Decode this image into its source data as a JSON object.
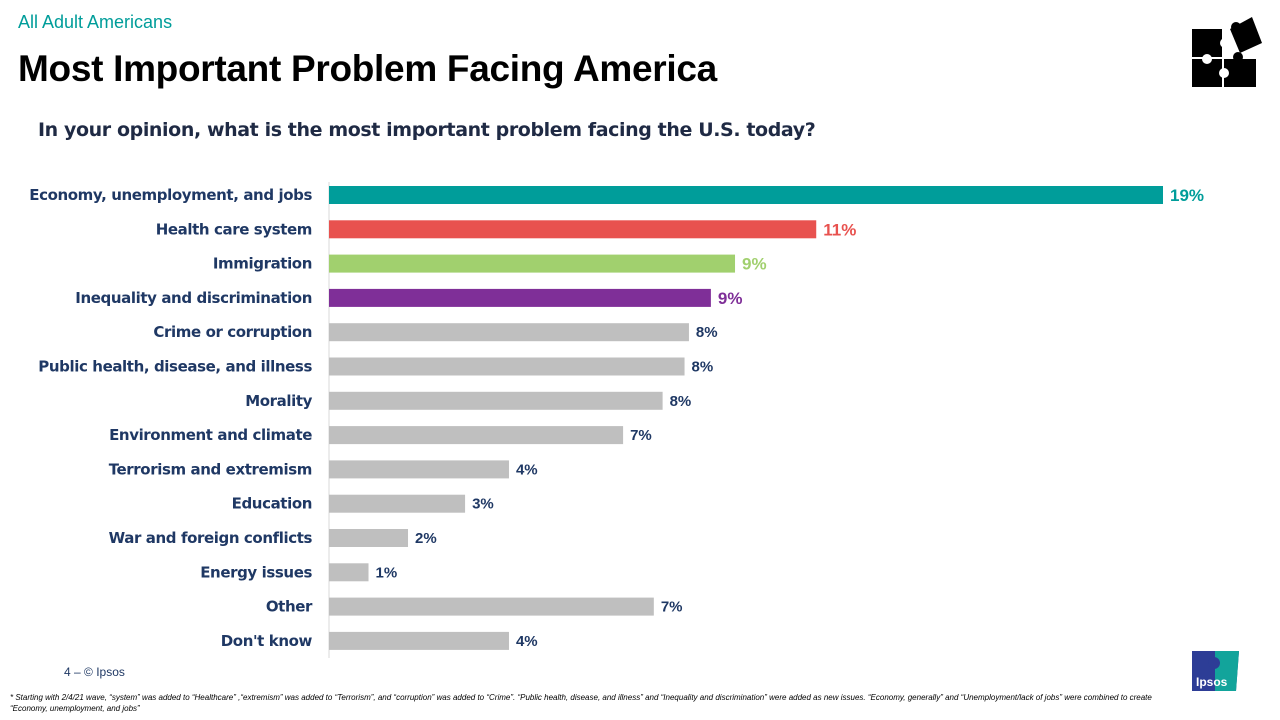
{
  "header": {
    "audience": "All Adult Americans",
    "title": "Most Important Problem Facing America",
    "question": "In your opinion, what is the most important problem facing the U.S. today?"
  },
  "chart_data": {
    "type": "bar",
    "orientation": "horizontal",
    "categories": [
      "Economy, unemployment, and jobs",
      "Health care system",
      "Immigration",
      "Inequality and discrimination",
      "Crime or corruption",
      "Public health, disease, and illness",
      "Morality",
      "Environment and climate",
      "Terrorism and extremism",
      "Education",
      "War and foreign conflicts",
      "Energy issues",
      "Other",
      "Don't know"
    ],
    "values": [
      19,
      11.1,
      9.25,
      8.7,
      8.2,
      8.1,
      7.6,
      6.7,
      4.1,
      3.1,
      1.8,
      0.9,
      7.4,
      4.1
    ],
    "labels": [
      "19%",
      "11%",
      "9%",
      "9%",
      "8%",
      "8%",
      "8%",
      "7%",
      "4%",
      "3%",
      "2%",
      "1%",
      "7%",
      "4%"
    ],
    "colors": [
      "#009d9a",
      "#e8524f",
      "#a1d06e",
      "#7f2f98",
      "#bfbfbf",
      "#bfbfbf",
      "#bfbfbf",
      "#bfbfbf",
      "#bfbfbf",
      "#bfbfbf",
      "#bfbfbf",
      "#bfbfbf",
      "#bfbfbf",
      "#bfbfbf"
    ],
    "label_colors": [
      "#009d9a",
      "#e8524f",
      "#a1d06e",
      "#7f2f98",
      "#1f3864",
      "#1f3864",
      "#1f3864",
      "#1f3864",
      "#1f3864",
      "#1f3864",
      "#1f3864",
      "#1f3864",
      "#1f3864",
      "#1f3864"
    ],
    "xlim": [
      0,
      19
    ],
    "grid": false,
    "title": "",
    "xlabel": "",
    "ylabel": ""
  },
  "footer": {
    "page": "4 –  © Ipsos",
    "footnote": "* Starting with 2/4/21 wave, “system” was added to “Healthcare” ,“extremism” was added to “Terrorism”, and “corruption” was added to “Crime”. “Public health, disease, and illness” and “Inequality and discrimination” were added as new issues. “Economy, generally” and “Unemployment/lack of jobs” were combined to create “Economy, unemployment, and jobs”",
    "logo_text": "Ipsos"
  },
  "icons": {
    "top_right": "puzzle-icon",
    "bottom_right": "ipsos-logo"
  }
}
